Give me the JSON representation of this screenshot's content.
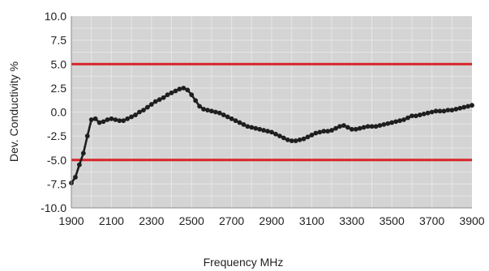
{
  "chart_data": {
    "type": "line",
    "title": "",
    "xlabel": "Frequency MHz",
    "ylabel": "Dev. Conductivity %",
    "xlim": [
      1900,
      3900
    ],
    "ylim": [
      -10.0,
      10.0
    ],
    "xticks": [
      1900,
      2100,
      2300,
      2500,
      2700,
      2900,
      3100,
      3300,
      3500,
      3700,
      3900
    ],
    "yticks": [
      10.0,
      7.5,
      5.0,
      2.5,
      0.0,
      -2.5,
      -5.0,
      -7.5,
      -10.0
    ],
    "xtick_labels": [
      "1900",
      "2100",
      "2300",
      "2500",
      "2700",
      "2900",
      "3100",
      "3300",
      "3500",
      "3700",
      "3900"
    ],
    "ytick_labels": [
      "10.0",
      "7.5",
      "5.0",
      "2.5",
      "0.0",
      "-2.5",
      "-5.0",
      "-7.5",
      "-10.0"
    ],
    "grid": true,
    "legend": "none",
    "colors": {
      "plot_background": "#d4d4d4",
      "grid": "#e6e6e6",
      "series": "#1e1e1e",
      "limit": "#d8232a",
      "axis": "#8a8a8a"
    },
    "reference_lines": [
      {
        "y": 5.0
      },
      {
        "y": -5.0
      }
    ],
    "series": [
      {
        "x": [
          1900,
          1920,
          1940,
          1960,
          1980,
          2000,
          2020,
          2040,
          2060,
          2080,
          2100,
          2120,
          2140,
          2160,
          2180,
          2200,
          2220,
          2240,
          2260,
          2280,
          2300,
          2320,
          2340,
          2360,
          2380,
          2400,
          2420,
          2440,
          2460,
          2480,
          2500,
          2520,
          2540,
          2560,
          2580,
          2600,
          2620,
          2640,
          2660,
          2680,
          2700,
          2720,
          2740,
          2760,
          2780,
          2800,
          2820,
          2840,
          2860,
          2880,
          2900,
          2920,
          2940,
          2960,
          2980,
          3000,
          3020,
          3040,
          3060,
          3080,
          3100,
          3120,
          3140,
          3160,
          3180,
          3200,
          3220,
          3240,
          3260,
          3280,
          3300,
          3320,
          3340,
          3360,
          3380,
          3400,
          3420,
          3440,
          3460,
          3480,
          3500,
          3520,
          3540,
          3560,
          3580,
          3600,
          3620,
          3640,
          3660,
          3680,
          3700,
          3720,
          3740,
          3760,
          3780,
          3800,
          3820,
          3840,
          3860,
          3880,
          3900
        ],
        "y": [
          -7.4,
          -6.8,
          -5.5,
          -4.3,
          -2.5,
          -0.8,
          -0.7,
          -1.1,
          -1.0,
          -0.8,
          -0.7,
          -0.8,
          -0.9,
          -0.9,
          -0.7,
          -0.5,
          -0.3,
          0.0,
          0.2,
          0.5,
          0.8,
          1.1,
          1.3,
          1.5,
          1.8,
          2.0,
          2.2,
          2.4,
          2.5,
          2.3,
          1.8,
          1.2,
          0.6,
          0.3,
          0.2,
          0.1,
          0.0,
          -0.1,
          -0.3,
          -0.5,
          -0.7,
          -0.9,
          -1.1,
          -1.3,
          -1.5,
          -1.6,
          -1.7,
          -1.8,
          -1.9,
          -2.0,
          -2.1,
          -2.3,
          -2.5,
          -2.7,
          -2.9,
          -3.0,
          -3.0,
          -2.9,
          -2.8,
          -2.6,
          -2.4,
          -2.2,
          -2.1,
          -2.0,
          -2.0,
          -1.9,
          -1.7,
          -1.5,
          -1.4,
          -1.6,
          -1.8,
          -1.8,
          -1.7,
          -1.6,
          -1.5,
          -1.5,
          -1.5,
          -1.4,
          -1.3,
          -1.2,
          -1.1,
          -1.0,
          -0.9,
          -0.8,
          -0.6,
          -0.4,
          -0.4,
          -0.3,
          -0.2,
          -0.1,
          0.0,
          0.1,
          0.1,
          0.1,
          0.2,
          0.2,
          0.3,
          0.4,
          0.5,
          0.6,
          0.7
        ]
      }
    ]
  }
}
